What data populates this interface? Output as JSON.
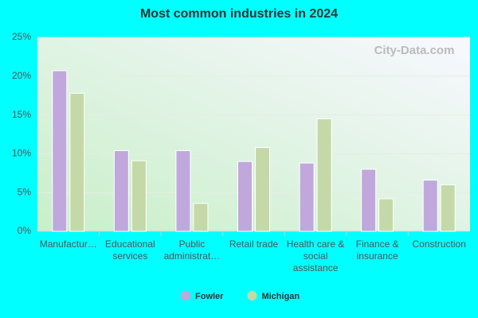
{
  "chart_data": {
    "type": "bar",
    "title": "Most common industries in 2024",
    "watermark": "City-Data.com",
    "categories": [
      "Manufactur…",
      "Educational services",
      "Public administrat…",
      "Retail trade",
      "Health care & social assistance",
      "Finance & insurance",
      "Construction"
    ],
    "series": [
      {
        "name": "Fowler",
        "color": "#c0a8dc",
        "values": [
          20.7,
          10.4,
          10.4,
          9.0,
          8.8,
          8.0,
          6.6
        ]
      },
      {
        "name": "Michigan",
        "color": "#c5d9a8",
        "values": [
          17.8,
          9.1,
          3.6,
          10.8,
          14.5,
          4.2,
          6.0
        ]
      }
    ],
    "ylim": [
      0,
      25
    ],
    "yticks": [
      {
        "value": 0,
        "label": "0%"
      },
      {
        "value": 5,
        "label": "5%"
      },
      {
        "value": 10,
        "label": "10%"
      },
      {
        "value": 15,
        "label": "15%"
      },
      {
        "value": 20,
        "label": "20%"
      },
      {
        "value": 25,
        "label": "25%"
      }
    ],
    "grid": true,
    "legend": "bottom"
  }
}
